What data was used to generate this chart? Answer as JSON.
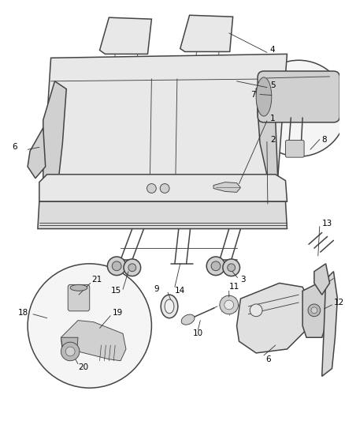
{
  "bg_color": "#ffffff",
  "line_color": "#444444",
  "label_color": "#000000",
  "light_fill": "#e8e8e8",
  "mid_fill": "#d0d0d0",
  "dark_fill": "#b8b8b8",
  "lw_main": 1.1,
  "lw_thin": 0.65,
  "label_fs": 7.5,
  "ann_lw": 0.6,
  "ann_color": "#333333"
}
